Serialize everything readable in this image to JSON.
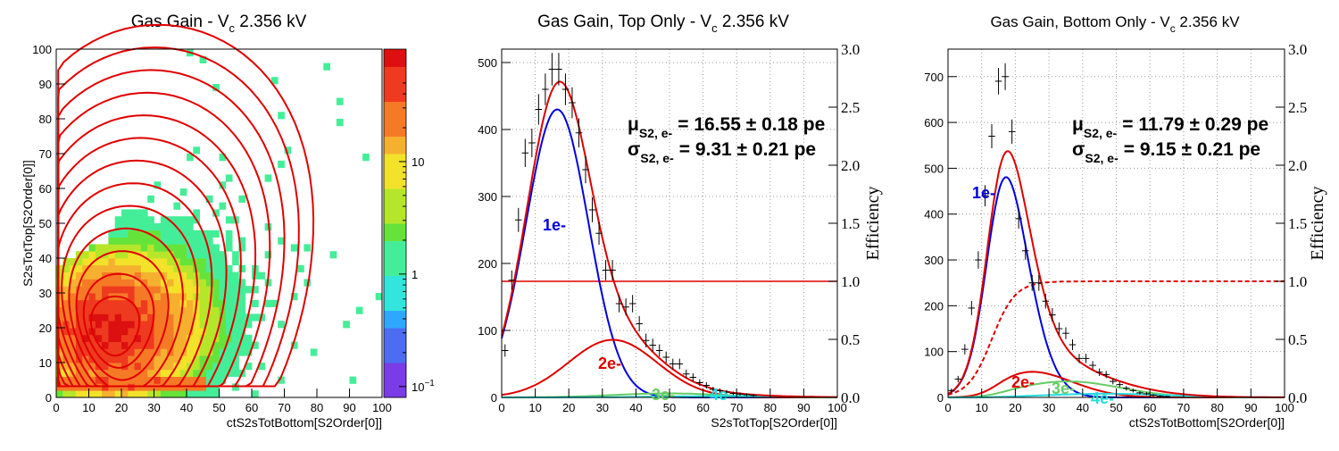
{
  "panels": {
    "left": {
      "title": "Gas Gain - V",
      "title_sub": "c",
      "title_rest": " 2.356 kV"
    },
    "mid": {
      "title": "Gas Gain, Top Only - V",
      "title_sub": "c",
      "title_rest": " 2.356 kV",
      "mu_sym": "μ",
      "mu_sub": "S2, e-",
      "mu_val": "= 16.55 ± 0.18 pe",
      "sigma_sym": "σ",
      "sigma_sub": "S2, e-",
      "sigma_val": "= 9.31 ± 0.21 pe"
    },
    "right": {
      "title": "Gas Gain, Bottom Only - V",
      "title_sub": "c",
      "title_rest": " 2.356 kV",
      "mu_sym": "μ",
      "mu_sub": "S2, e-",
      "mu_val": "= 11.79 ± 0.29 pe",
      "sigma_sym": "σ",
      "sigma_sub": "S2, e-",
      "sigma_val": "= 9.15 ± 0.21 pe"
    }
  },
  "chart_data": [
    {
      "type": "heatmap",
      "title": "Gas Gain - Vc 2.356 kV",
      "xlabel": "ctS2sTotBottom[S2Order[0]]",
      "ylabel": "S2sTotTop[S2Order[0]]",
      "xlim": [
        0,
        100
      ],
      "ylim": [
        0,
        100
      ],
      "x_ticks": [
        0,
        10,
        20,
        30,
        40,
        50,
        60,
        70,
        80,
        90,
        100
      ],
      "y_ticks": [
        0,
        10,
        20,
        30,
        40,
        50,
        60,
        70,
        80,
        90,
        100
      ],
      "z_scale": "log",
      "z_ticks": [
        "10",
        "1",
        "10^-1"
      ],
      "z_range": [
        0.08,
        100
      ],
      "grid": false,
      "density_peak": {
        "x": 17,
        "y": 19,
        "sigma_x": 11,
        "sigma_y": 9,
        "peak_count": 60
      },
      "baseline_band": {
        "y_range": [
          2,
          5
        ],
        "x_range": [
          1,
          45
        ]
      },
      "contours": {
        "count": 13,
        "color": "#e00000",
        "center": [
          17,
          19
        ]
      },
      "colors": {
        "contour": "#e00000"
      }
    },
    {
      "type": "line",
      "title": "Gas Gain, Top Only - Vc 2.356 kV",
      "xlabel": "S2sTotTop[S2Order[0]]",
      "ylabel_right": "Efficiency",
      "xlim": [
        0,
        100
      ],
      "ylim": [
        0,
        520
      ],
      "y2lim": [
        0,
        3.0
      ],
      "x_ticks": [
        0,
        10,
        20,
        30,
        40,
        50,
        60,
        70,
        80,
        90,
        100
      ],
      "y_ticks": [
        0,
        100,
        200,
        300,
        400,
        500
      ],
      "y2_ticks": [
        "0.0",
        "0.5",
        "1.0",
        "1.5",
        "2.0",
        "2.5",
        "3.0"
      ],
      "grid": true,
      "data_points": {
        "x": [
          1,
          3,
          5,
          7,
          9,
          11,
          13,
          15,
          17,
          19,
          21,
          23,
          25,
          27,
          29,
          31,
          33,
          35,
          37,
          39,
          41,
          43,
          45,
          47,
          49,
          51,
          53,
          55,
          57,
          59,
          61,
          63,
          65,
          67,
          69,
          71,
          73,
          75
        ],
        "y": [
          70,
          175,
          265,
          365,
          380,
          430,
          460,
          490,
          490,
          460,
          440,
          395,
          340,
          280,
          245,
          190,
          190,
          140,
          135,
          140,
          110,
          85,
          78,
          70,
          60,
          50,
          50,
          35,
          30,
          22,
          18,
          12,
          10,
          8,
          6,
          5,
          4,
          3
        ]
      },
      "series": [
        {
          "name": "1e-",
          "mu": 16.55,
          "sigma": 9.31,
          "amp": 430,
          "color": "#0000dd"
        },
        {
          "name": "2e-",
          "mu": 33.1,
          "sigma": 13.2,
          "amp": 86,
          "color": "#dd0000"
        },
        {
          "name": "3e-",
          "mu": 49.65,
          "sigma": 16.1,
          "amp": 6,
          "color": "#66cc66"
        },
        {
          "name": "4e-",
          "mu": 66.2,
          "sigma": 18.6,
          "amp": 2,
          "color": "#22dddd"
        }
      ],
      "efficiency": {
        "type": "flat",
        "value": 1.0
      },
      "total_color": "#dd0000"
    },
    {
      "type": "line",
      "title": "Gas Gain, Bottom Only - Vc 2.356 kV",
      "xlabel": "ctS2sTotBottom[S2Order[0]]",
      "ylabel_right": "Efficiency",
      "xlim": [
        0,
        100
      ],
      "ylim": [
        0,
        760
      ],
      "y2lim": [
        0,
        3.0
      ],
      "x_ticks": [
        0,
        10,
        20,
        30,
        40,
        50,
        60,
        70,
        80,
        90,
        100
      ],
      "y_ticks": [
        0,
        100,
        200,
        300,
        400,
        500,
        600,
        700
      ],
      "y2_ticks": [
        "0.0",
        "0.5",
        "1.0",
        "1.5",
        "2.0",
        "2.5",
        "3.0"
      ],
      "grid": true,
      "data_points": {
        "x": [
          1,
          3,
          5,
          7,
          9,
          11,
          13,
          15,
          17,
          19,
          21,
          23,
          25,
          27,
          29,
          31,
          33,
          35,
          37,
          39,
          41,
          43,
          45,
          47,
          49,
          51,
          53,
          55,
          57,
          59,
          61,
          63,
          65
        ],
        "y": [
          15,
          40,
          105,
          195,
          300,
          440,
          570,
          690,
          700,
          580,
          390,
          320,
          250,
          250,
          210,
          180,
          150,
          140,
          115,
          85,
          85,
          70,
          55,
          50,
          35,
          28,
          20,
          15,
          10,
          8,
          5,
          3,
          2
        ]
      },
      "series": [
        {
          "name": "1e-",
          "mu": 11.79,
          "sigma": 9.15,
          "amp": 745,
          "color": "#0000dd"
        },
        {
          "name": "2e-",
          "mu": 23.6,
          "sigma": 12.9,
          "amp": 58,
          "color": "#dd0000"
        },
        {
          "name": "3e-",
          "mu": 35.4,
          "sigma": 15.8,
          "amp": 35,
          "color": "#66cc66"
        },
        {
          "name": "4e-",
          "mu": 47.2,
          "sigma": 18.3,
          "amp": 8,
          "color": "#22dddd"
        }
      ],
      "efficiency": {
        "type": "sigmoid",
        "x0": 13,
        "w": 3.5,
        "value": 1.0
      },
      "total_color": "#dd0000"
    }
  ]
}
